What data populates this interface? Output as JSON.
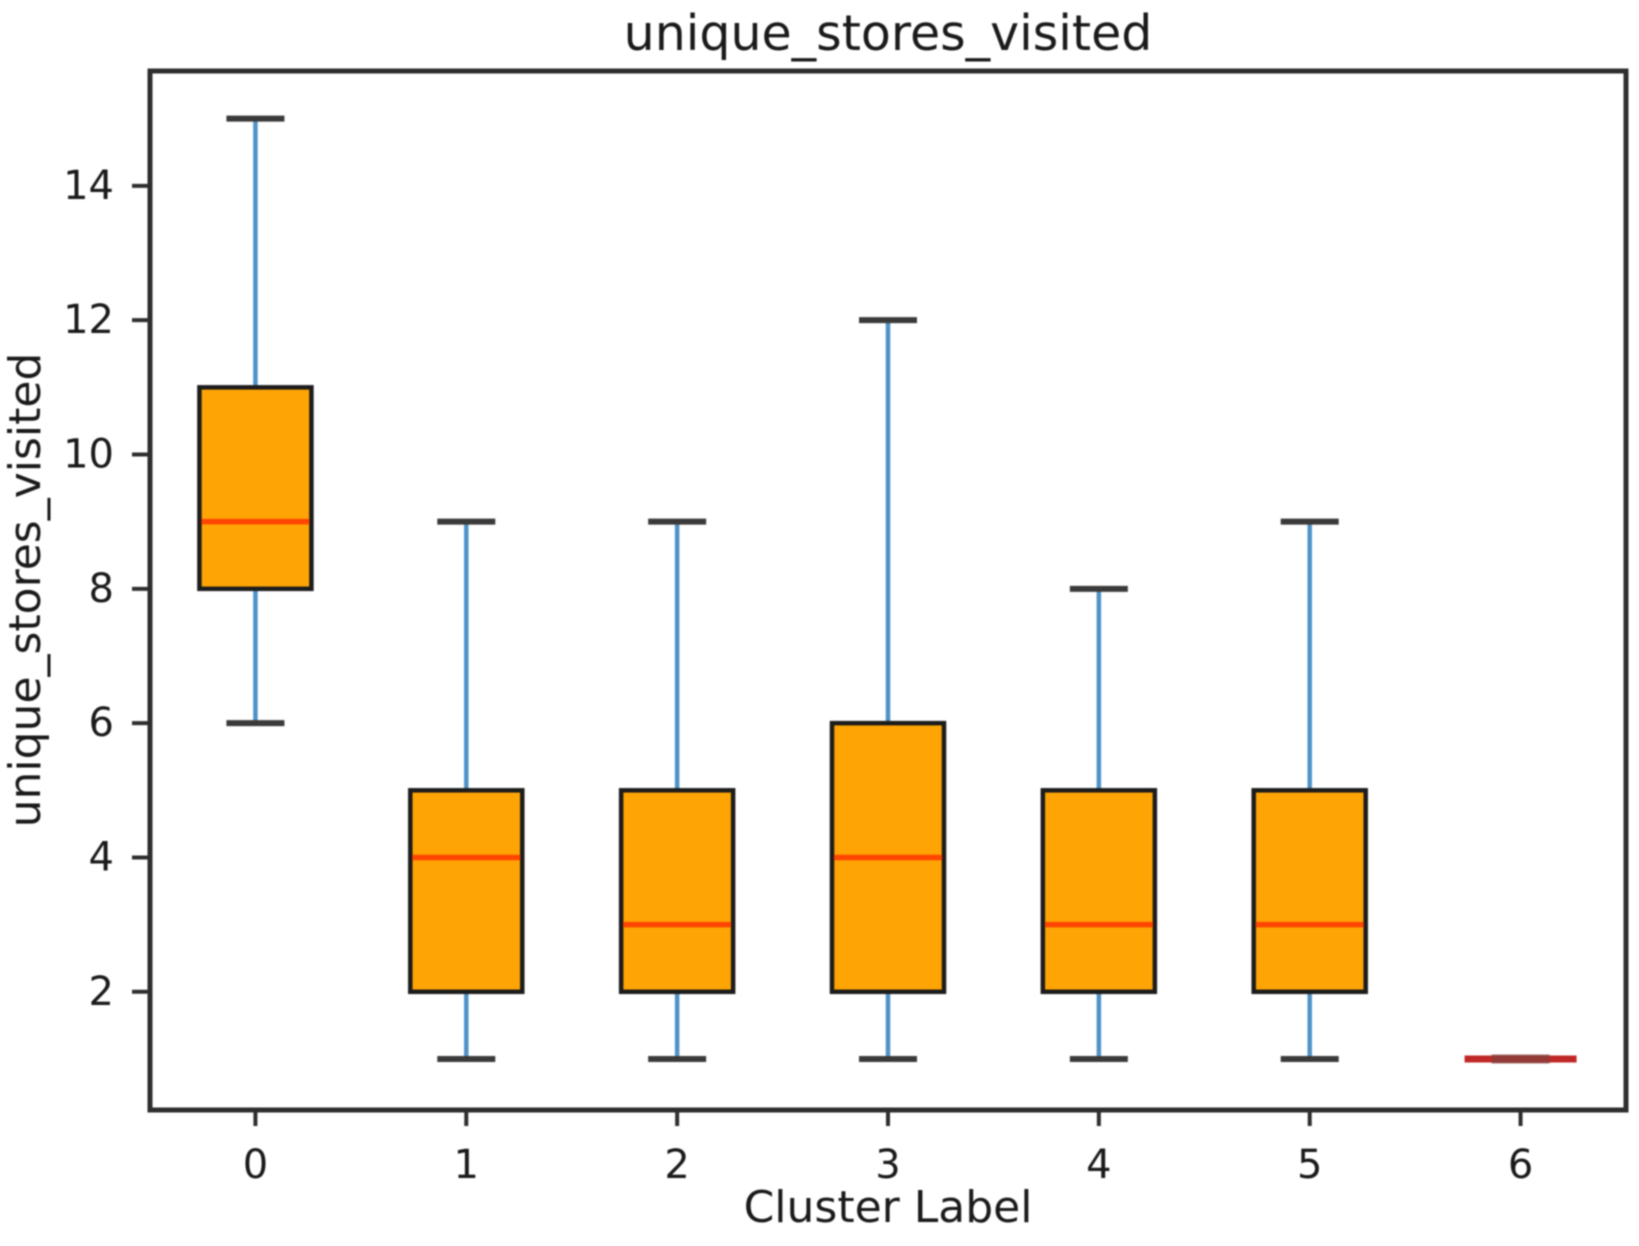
{
  "chart_data": {
    "type": "boxplot",
    "title": "unique_stores_visited",
    "xlabel": "Cluster Label",
    "ylabel": "unique_stores_visited",
    "categories": [
      "0",
      "1",
      "2",
      "3",
      "4",
      "5",
      "6"
    ],
    "y_ticks": [
      2,
      4,
      6,
      8,
      10,
      12,
      14
    ],
    "ylim": [
      0.24,
      15.71
    ],
    "grid": false,
    "legend": "none",
    "series": [
      {
        "label": "0",
        "whislo": 6,
        "q1": 8,
        "med": 9,
        "q3": 11,
        "whishi": 15,
        "fliers": [],
        "degenerate": false
      },
      {
        "label": "1",
        "whislo": 1,
        "q1": 2,
        "med": 4,
        "q3": 5,
        "whishi": 9,
        "fliers": [],
        "degenerate": false
      },
      {
        "label": "2",
        "whislo": 1,
        "q1": 2,
        "med": 3,
        "q3": 5,
        "whishi": 9,
        "fliers": [],
        "degenerate": false
      },
      {
        "label": "3",
        "whislo": 1,
        "q1": 2,
        "med": 4,
        "q3": 6,
        "whishi": 12,
        "fliers": [],
        "degenerate": false
      },
      {
        "label": "4",
        "whislo": 1,
        "q1": 2,
        "med": 3,
        "q3": 5,
        "whishi": 8,
        "fliers": [],
        "degenerate": false
      },
      {
        "label": "5",
        "whislo": 1,
        "q1": 2,
        "med": 3,
        "q3": 5,
        "whishi": 9,
        "fliers": [],
        "degenerate": false
      },
      {
        "label": "6",
        "whislo": 1,
        "q1": 1,
        "med": 1,
        "q3": 1,
        "whishi": 1,
        "fliers": [],
        "degenerate": true
      }
    ],
    "colors": {
      "box_fill": "#ffa405",
      "box_edge": "#1c1c1c",
      "median": "#ff4500",
      "whisker": "#4f92c6",
      "cap": "#3a3a3a",
      "degenerate_line": "#c02828",
      "degenerate_core": "#84403c",
      "spine": "#2e2e2e",
      "text": "#1a1a1a",
      "background": "#ffffff"
    }
  }
}
